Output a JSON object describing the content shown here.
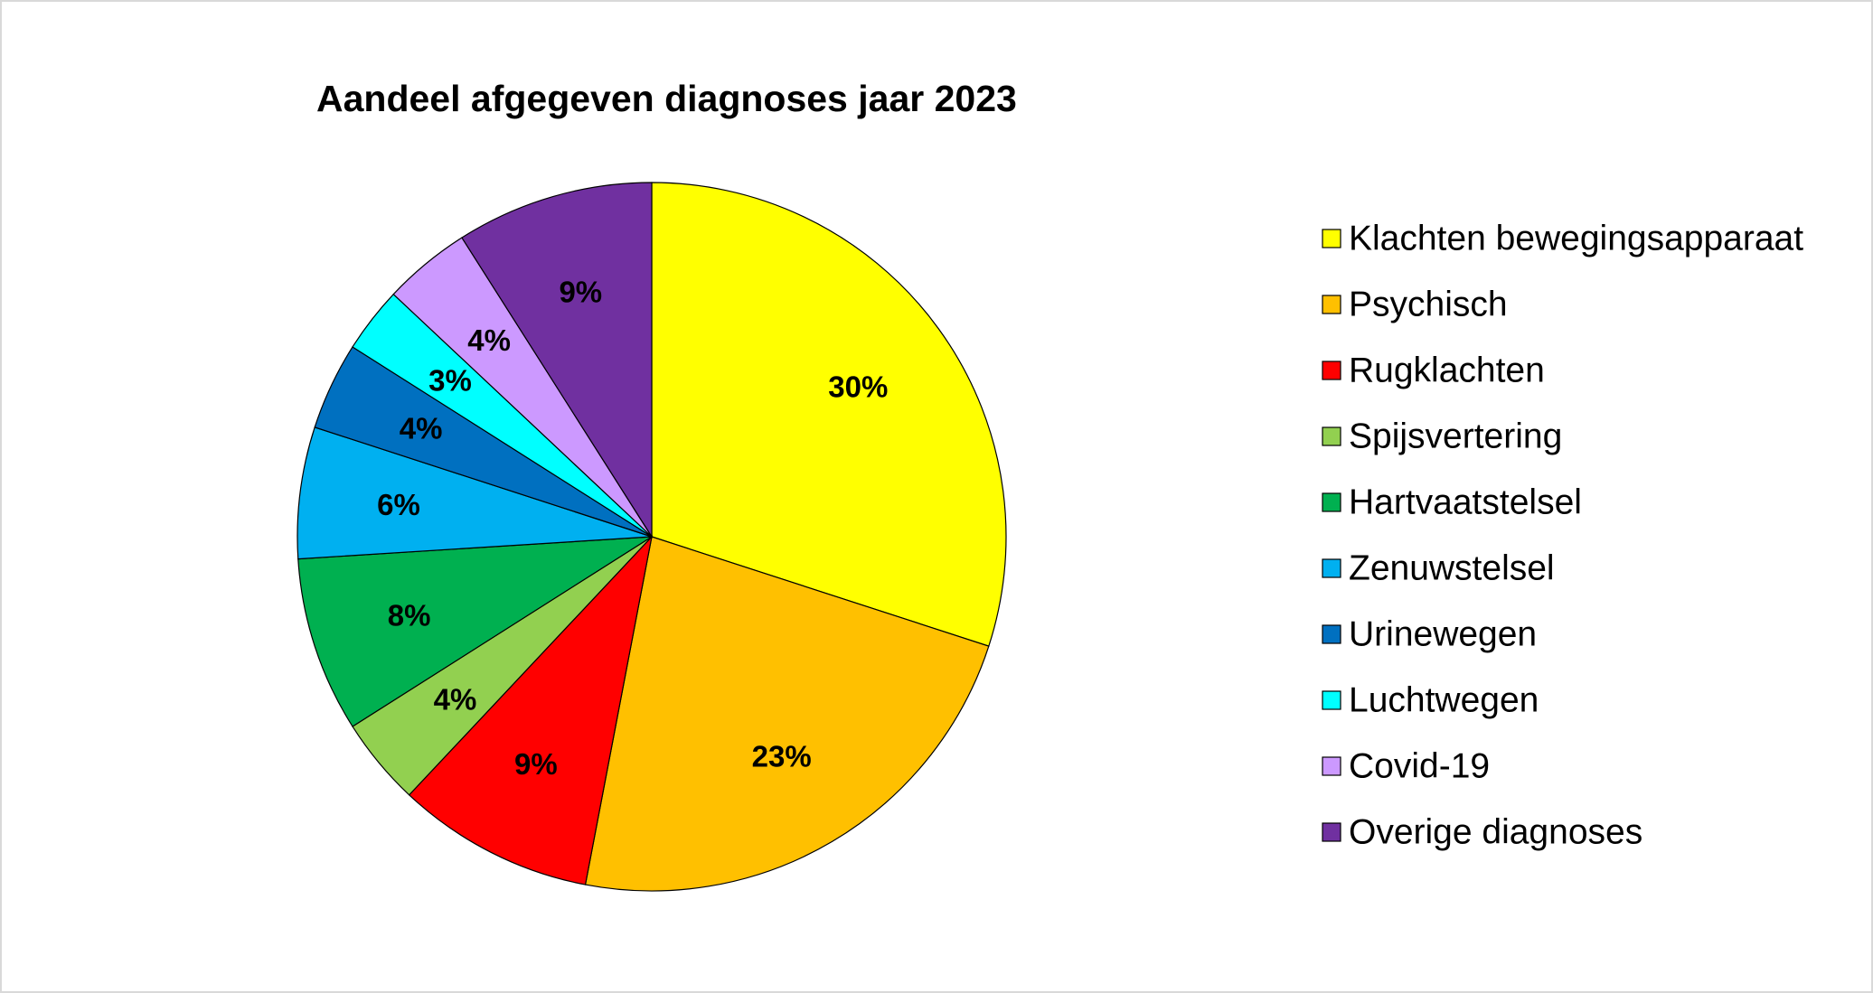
{
  "chart_data": {
    "type": "pie",
    "title": "Aandeel afgegeven diagnoses jaar 2023",
    "legend_position": "right",
    "categories": [
      "Klachten bewegingsapparaat",
      "Psychisch",
      "Rugklachten",
      "Spijsvertering",
      "Hartvaatstelsel",
      "Zenuwstelsel",
      "Urinewegen",
      "Luchtwegen",
      "Covid-19",
      "Overige diagnoses"
    ],
    "values": [
      30,
      23,
      9,
      4,
      8,
      6,
      4,
      3,
      4,
      9
    ],
    "labels": [
      "30%",
      "23%",
      "9%",
      "4%",
      "8%",
      "6%",
      "4%",
      "3%",
      "4%",
      "9%"
    ],
    "colors": [
      "#FFFF00",
      "#FFC000",
      "#FF0000",
      "#92D050",
      "#00B050",
      "#00B0F0",
      "#0070C0",
      "#00FFFF",
      "#CC99FF",
      "#7030A0"
    ]
  }
}
